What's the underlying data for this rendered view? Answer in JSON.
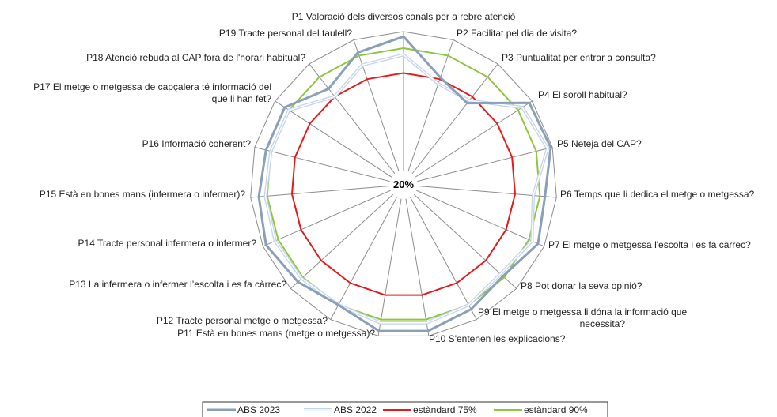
{
  "chart_data": {
    "type": "radar",
    "center_label": "20%",
    "categories": [
      "P1 Valoració dels diversos canals per a rebre atenció",
      "P2 Facilitat pel dia de visita?",
      "P3 Puntualitat per entrar a consulta?",
      "P4 El soroll habitual?",
      "P5 Neteja del CAP?",
      "P6 Temps que li dedica el metge o metgessa?",
      "P7 El metge o metgessa l'escolta i es fa càrrec?",
      "P8 Pot donar la seva opinió?",
      "P9 El metge o metgessa li dóna la  informació que necessita?",
      "P10 S'entenen les explicacions?",
      "P11 Està en bones mans (metge o metgessa)?",
      "P12 Tracte personal metge o metgessa?",
      "P13 La infermera o infermer l’escolta i es fa càrrec?",
      "P14 Tracte personal infermera o infermer?",
      "P15 Està en bones mans (infermera o infermer)?",
      "P16 Informació coherent?",
      "P17 El metge o metgessa de capçalera té informació del que li han fet?",
      "P18 Atenció rebuda al CAP fora de l'horari habitual?",
      "P19 Tracte personal del taulell?"
    ],
    "range": [
      20,
      100
    ],
    "series": [
      {
        "name": "ABS 2023",
        "color": "#8a9fb8",
        "values": [
          97,
          76,
          70,
          98,
          99,
          93,
          96,
          89,
          93,
          97,
          97,
          90,
          94,
          98,
          95,
          93,
          93,
          81,
          92
        ]
      },
      {
        "name": "ABS 2022",
        "color": "#c4d4ea",
        "values": [
          86,
          72,
          72,
          93,
          97,
          86,
          92,
          87,
          90,
          92,
          92,
          90,
          91,
          92,
          91,
          90,
          90,
          75,
          84
        ]
      },
      {
        "name": "estàndard 75%",
        "color": "#e21c1c",
        "values": [
          75,
          75,
          75,
          75,
          75,
          75,
          75,
          75,
          75,
          75,
          75,
          75,
          75,
          75,
          75,
          75,
          75,
          75,
          75
        ]
      },
      {
        "name": "estàndard 90%",
        "color": "#8dc63f",
        "values": [
          90,
          90,
          90,
          90,
          90,
          90,
          90,
          90,
          90,
          90,
          90,
          90,
          90,
          90,
          90,
          90,
          90,
          90,
          90
        ]
      }
    ],
    "legend_position": "bottom",
    "grid": true
  }
}
